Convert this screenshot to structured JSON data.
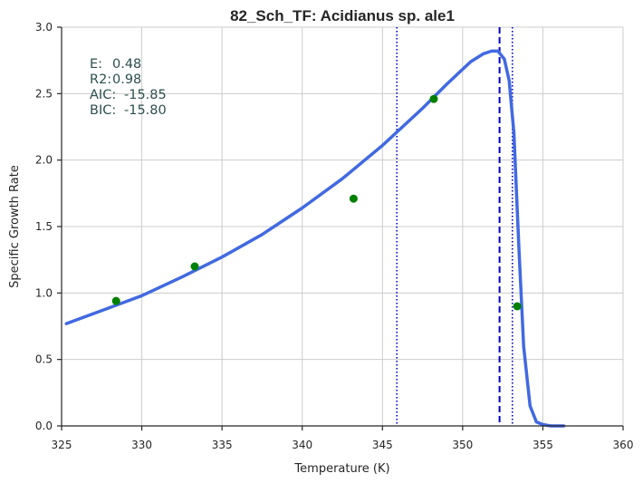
{
  "chart_data": {
    "type": "line",
    "title": "82_Sch_TF: Acidianus sp. ale1",
    "xlabel": "Temperature (K)",
    "ylabel": "Specific Growth Rate",
    "xlim": [
      325,
      360
    ],
    "ylim": [
      0,
      3.0
    ],
    "x_ticks": [
      325,
      330,
      335,
      340,
      345,
      350,
      355,
      360
    ],
    "x_tick_labels": [
      "325",
      "330",
      "335",
      "340",
      "345",
      "350",
      "355",
      "360"
    ],
    "y_ticks": [
      0,
      0.5,
      1.0,
      1.5,
      2.0,
      2.5,
      3.0
    ],
    "y_tick_labels": [
      "0.0",
      "0.5",
      "1.0",
      "1.5",
      "2.0",
      "2.5",
      "3.0"
    ],
    "grid": true,
    "observed_points": {
      "color": "#008000",
      "x": [
        328.4,
        333.3,
        343.2,
        348.2,
        353.4
      ],
      "y": [
        0.94,
        1.2,
        1.71,
        2.46,
        0.9
      ]
    },
    "fitted_curve": {
      "color": "#4169e1",
      "x": [
        325.3,
        328,
        330,
        332.5,
        335,
        337.5,
        340,
        342.5,
        345,
        347.5,
        349,
        350.5,
        351.3,
        351.8,
        352.2,
        352.6,
        352.9,
        353.2,
        353.5,
        353.8,
        354.2,
        354.6,
        355,
        355.5,
        356.3
      ],
      "y": [
        0.77,
        0.89,
        0.98,
        1.12,
        1.27,
        1.44,
        1.64,
        1.86,
        2.11,
        2.39,
        2.57,
        2.74,
        2.8,
        2.82,
        2.82,
        2.76,
        2.6,
        2.2,
        1.35,
        0.6,
        0.15,
        0.03,
        0.01,
        0.0,
        0.0
      ]
    },
    "vertical_lines": [
      {
        "x": 345.9,
        "style": "dotted",
        "color": "#0000cd"
      },
      {
        "x": 352.3,
        "style": "dashed",
        "color": "#0000cd"
      },
      {
        "x": 353.1,
        "style": "dotted",
        "color": "#0000cd"
      }
    ],
    "stats_text": [
      {
        "label": "E:",
        "value": "0.48"
      },
      {
        "label": "R2:",
        "value": "0.98"
      },
      {
        "label": "AIC:",
        "value": "-15.85"
      },
      {
        "label": "BIC:",
        "value": "-15.80"
      }
    ]
  }
}
